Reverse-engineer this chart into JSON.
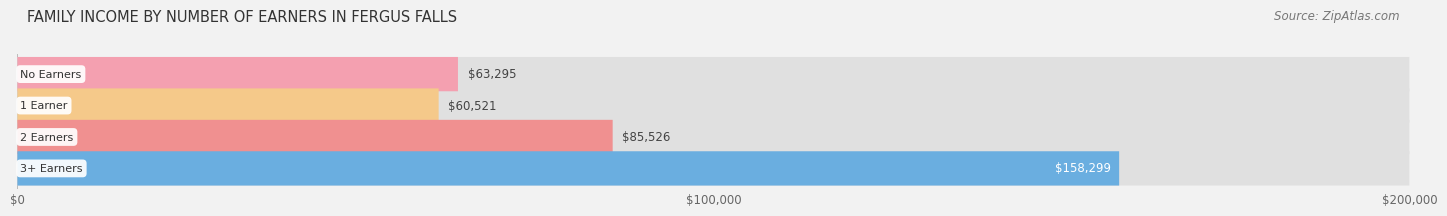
{
  "title": "FAMILY INCOME BY NUMBER OF EARNERS IN FERGUS FALLS",
  "source": "Source: ZipAtlas.com",
  "categories": [
    "No Earners",
    "1 Earner",
    "2 Earners",
    "3+ Earners"
  ],
  "values": [
    63295,
    60521,
    85526,
    158299
  ],
  "bar_colors": [
    "#f4a0b0",
    "#f5c98a",
    "#f09090",
    "#6aaee0"
  ],
  "label_colors": [
    "#555555",
    "#555555",
    "#555555",
    "#ffffff"
  ],
  "background_color": "#f2f2f2",
  "bar_bg_color": "#e0e0e0",
  "xlim": [
    0,
    200000
  ],
  "xticks": [
    0,
    100000,
    200000
  ],
  "xtick_labels": [
    "$0",
    "$100,000",
    "$200,000"
  ],
  "title_fontsize": 10.5,
  "source_fontsize": 8.5,
  "bar_height": 0.62,
  "label_fontsize": 8.5,
  "category_fontsize": 8.0,
  "rounding_size": 0.25
}
